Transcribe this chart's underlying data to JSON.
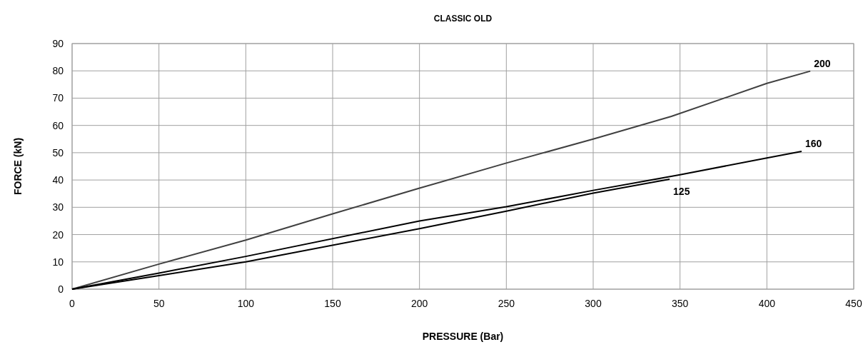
{
  "chart_data": {
    "type": "line",
    "title": "CLASSIC OLD",
    "xlabel": "PRESSURE (Bar)",
    "ylabel": "FORCE (kN)",
    "xlim": [
      0,
      450
    ],
    "xticks": [
      0,
      50,
      100,
      150,
      200,
      250,
      300,
      350,
      400,
      450
    ],
    "ylim": [
      0,
      90
    ],
    "yticks": [
      0,
      10,
      20,
      30,
      40,
      50,
      60,
      70,
      80,
      90
    ],
    "grid": true,
    "marker": "none",
    "line_style": "solid",
    "series": [
      {
        "name": "200",
        "color": "#404040",
        "x": [
          0,
          50,
          100,
          150,
          200,
          250,
          300,
          345,
          400,
          425
        ],
        "values": [
          0,
          9.2,
          18,
          27.6,
          37,
          46.2,
          55,
          63.3,
          75.4,
          79.9
        ]
      },
      {
        "name": "160",
        "color": "#000000",
        "x": [
          0,
          50,
          100,
          200,
          250,
          300,
          350,
          400,
          420
        ],
        "values": [
          0,
          5.9,
          12,
          25,
          30.2,
          36.2,
          41.9,
          48.1,
          50.5
        ]
      },
      {
        "name": "125",
        "color": "#000000",
        "x": [
          0,
          50,
          100,
          200,
          250,
          300,
          344
        ],
        "values": [
          0,
          5,
          10,
          22.2,
          28.6,
          35.2,
          40.3
        ]
      }
    ]
  }
}
